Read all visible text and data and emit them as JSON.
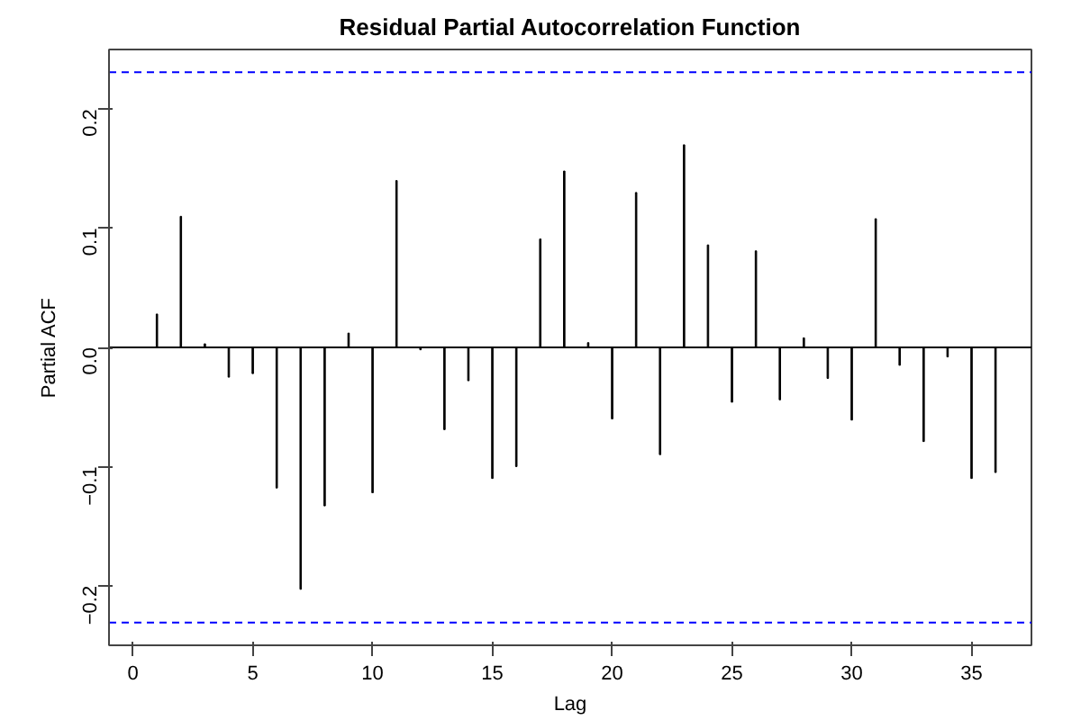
{
  "chart_data": {
    "type": "bar",
    "title": "Residual Partial Autocorrelation Function",
    "xlabel": "Lag",
    "ylabel": "Partial ACF",
    "x": [
      1,
      2,
      3,
      4,
      5,
      6,
      7,
      8,
      9,
      10,
      11,
      12,
      13,
      14,
      15,
      16,
      17,
      18,
      19,
      20,
      21,
      22,
      23,
      24,
      25,
      26,
      27,
      28,
      29,
      30,
      31,
      32,
      33,
      34,
      35,
      36
    ],
    "values": [
      0.028,
      0.11,
      0.003,
      -0.025,
      -0.022,
      -0.118,
      -0.203,
      -0.133,
      0.012,
      -0.122,
      0.14,
      -0.002,
      -0.069,
      -0.028,
      -0.11,
      -0.1,
      0.091,
      0.148,
      0.004,
      -0.06,
      0.13,
      -0.09,
      0.17,
      0.086,
      -0.046,
      0.081,
      -0.044,
      0.008,
      -0.026,
      -0.061,
      0.108,
      -0.015,
      -0.079,
      -0.008,
      -0.11,
      -0.105
    ],
    "color": "#000000",
    "xlim": [
      -1.0,
      37.5
    ],
    "ylim": [
      -0.25,
      0.25
    ],
    "xticks": [
      0,
      5,
      10,
      15,
      20,
      25,
      30,
      35
    ],
    "yticks": [
      {
        "value": -0.2,
        "label": "−0.2"
      },
      {
        "value": -0.1,
        "label": "−0.1"
      },
      {
        "value": 0,
        "label": "0.0"
      },
      {
        "value": 0.1,
        "label": "0.1"
      },
      {
        "value": 0.2,
        "label": "0.2"
      }
    ],
    "ref_lines": [
      {
        "axis": "y",
        "value": 0.231,
        "color": "#0000ff",
        "line_style": "dashed"
      },
      {
        "axis": "y",
        "value": -0.231,
        "color": "#0000ff",
        "line_style": "dashed"
      },
      {
        "axis": "y",
        "value": 0,
        "color": "#000000",
        "line_style": "solid"
      }
    ],
    "grid": false
  }
}
